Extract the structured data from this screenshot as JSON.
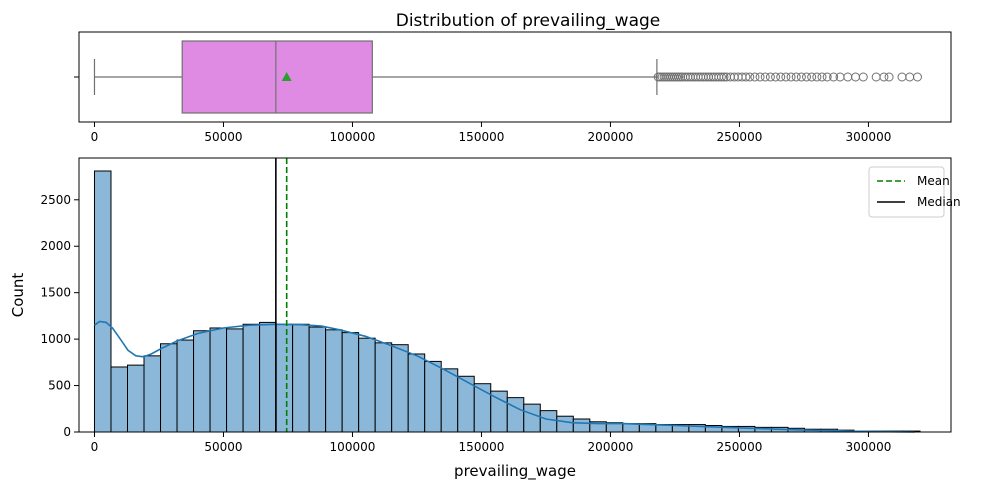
{
  "chart_data": [
    {
      "type": "box",
      "title": "Distribution of prevailing_wage",
      "xlim": [
        -6000,
        332000
      ],
      "xticks": [
        0,
        50000,
        100000,
        150000,
        200000,
        250000,
        300000
      ],
      "whisker_low": 0,
      "q1": 34000,
      "median": 70300,
      "q3": 107700,
      "whisker_high": 218000,
      "mean": 74500,
      "box_color": "#e08be3",
      "mean_marker_color": "#2ca02c",
      "outliers": [
        218500,
        219200,
        220000,
        220800,
        221600,
        222400,
        223200,
        224000,
        224800,
        225600,
        226400,
        227200,
        228000,
        229000,
        230000,
        231000,
        232000,
        233000,
        234000,
        235000,
        236000,
        237000,
        238000,
        239000,
        240000,
        241000,
        242000,
        243000,
        244000,
        245000,
        246500,
        248000,
        249500,
        251000,
        252500,
        254000,
        256000,
        258000,
        260000,
        262000,
        264000,
        266000,
        268000,
        270000,
        272000,
        274000,
        276000,
        278000,
        280000,
        282000,
        284000,
        286500,
        289000,
        292000,
        295000,
        298000,
        303000,
        306000,
        308000,
        313000,
        316000,
        319000
      ]
    },
    {
      "type": "histogram",
      "xlabel": "prevailing_wage",
      "ylabel": "Count",
      "xlim": [
        -6000,
        332000
      ],
      "ylim": [
        0,
        2950
      ],
      "xticks": [
        0,
        50000,
        100000,
        150000,
        200000,
        250000,
        300000
      ],
      "yticks": [
        0,
        500,
        1000,
        1500,
        2000,
        2500
      ],
      "bin_width": 6400,
      "bin_start": 0,
      "bar_color": "#8bb8d9",
      "counts": [
        2810,
        700,
        720,
        820,
        950,
        990,
        1090,
        1120,
        1110,
        1160,
        1180,
        1160,
        1160,
        1130,
        1100,
        1070,
        1010,
        960,
        940,
        840,
        760,
        680,
        600,
        520,
        440,
        370,
        300,
        230,
        170,
        140,
        110,
        100,
        90,
        90,
        80,
        80,
        80,
        70,
        60,
        60,
        50,
        50,
        40,
        30,
        30,
        20,
        10,
        10,
        10,
        10
      ],
      "kde": [
        [
          0,
          1150
        ],
        [
          2000,
          1190
        ],
        [
          4500,
          1180
        ],
        [
          7000,
          1120
        ],
        [
          10000,
          1000
        ],
        [
          13000,
          880
        ],
        [
          16000,
          820
        ],
        [
          19000,
          810
        ],
        [
          22000,
          840
        ],
        [
          26000,
          900
        ],
        [
          32000,
          980
        ],
        [
          40000,
          1060
        ],
        [
          50000,
          1120
        ],
        [
          60000,
          1150
        ],
        [
          70000,
          1160
        ],
        [
          80000,
          1155
        ],
        [
          88000,
          1140
        ],
        [
          95000,
          1100
        ],
        [
          105000,
          1030
        ],
        [
          115000,
          930
        ],
        [
          125000,
          820
        ],
        [
          135000,
          680
        ],
        [
          145000,
          530
        ],
        [
          155000,
          380
        ],
        [
          165000,
          240
        ],
        [
          175000,
          140
        ],
        [
          185000,
          100
        ],
        [
          195000,
          90
        ],
        [
          205000,
          90
        ],
        [
          215000,
          80
        ],
        [
          225000,
          70
        ],
        [
          235000,
          60
        ],
        [
          245000,
          50
        ],
        [
          255000,
          40
        ],
        [
          265000,
          30
        ],
        [
          275000,
          20
        ],
        [
          285000,
          15
        ],
        [
          295000,
          8
        ],
        [
          305000,
          4
        ],
        [
          318000,
          0
        ]
      ],
      "kde_color": "#1f77b4",
      "mean_line": 74500,
      "median_line": 70300,
      "mean_color": "#008000",
      "median_color": "#000000",
      "legend": [
        {
          "label": "Mean",
          "style": "dashed",
          "color": "#008000"
        },
        {
          "label": "Median",
          "style": "solid",
          "color": "#000000"
        }
      ],
      "legend_position": "top-right"
    }
  ]
}
